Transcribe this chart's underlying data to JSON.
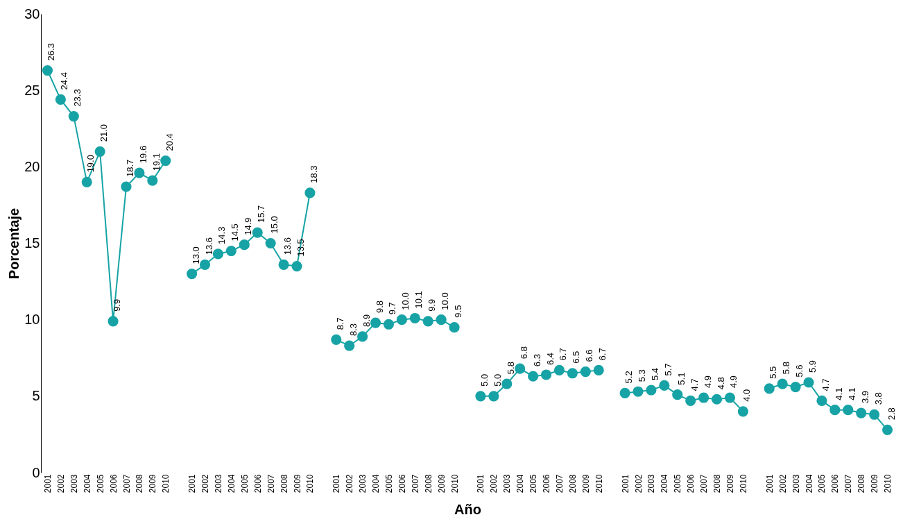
{
  "chart_data": {
    "type": "line",
    "xlabel": "Año",
    "ylabel": "Porcentaje",
    "categories": [
      "2001",
      "2002",
      "2003",
      "2004",
      "2005",
      "2006",
      "2007",
      "2008",
      "2009",
      "2010",
      null,
      "2001",
      "2002",
      "2003",
      "2004",
      "2005",
      "2006",
      "2007",
      "2008",
      "2009",
      "2010",
      null,
      "2001",
      "2002",
      "2003",
      "2004",
      "2005",
      "2006",
      "2007",
      "2008",
      "2009",
      "2010",
      null,
      "2001",
      "2002",
      "2003",
      "2004",
      "2005",
      "2006",
      "2007",
      "2008",
      "2009",
      "2010",
      null,
      "2001",
      "2002",
      "2003",
      "2004",
      "2005",
      "2006",
      "2007",
      "2008",
      "2009",
      "2010",
      null,
      "2001",
      "2002",
      "2003",
      "2004",
      "2005",
      "2006",
      "2007",
      "2008",
      "2009",
      "2010"
    ],
    "series": [
      {
        "color": "#17a3a5",
        "value_labels": [
          "26.3",
          "24.4",
          "23.3",
          "19.0",
          "21.0",
          "9.9",
          "18.7",
          "19.6",
          "19.1",
          "20.4",
          null,
          "13.0",
          "13.6",
          "14.3",
          "14.5",
          "14.9",
          "15.7",
          "15.0",
          "13.6",
          "13.5",
          "18.3",
          null,
          "8.7",
          "8.3",
          "8.9",
          "9.8",
          "9.7",
          "10.0",
          "10.1",
          "9.9",
          "10.0",
          "9.5",
          null,
          "5.0",
          "5.0",
          "5.8",
          "6.8",
          "6.3",
          "6.4",
          "6.7",
          "6.5",
          "6.6",
          "6.7",
          null,
          "5.2",
          "5.3",
          "5.4",
          "5.7",
          "5.1",
          "4.7",
          "4.9",
          "4.8",
          "4.9",
          "4.0",
          null,
          "5.5",
          "5.8",
          "5.6",
          "5.9",
          "4.7",
          "4.1",
          "4.1",
          "3.9",
          "3.8",
          "2.8"
        ],
        "values": [
          26.3,
          24.4,
          23.3,
          19.0,
          21.0,
          9.9,
          18.7,
          19.6,
          19.1,
          20.4,
          null,
          13.0,
          13.6,
          14.3,
          14.5,
          14.9,
          15.7,
          15.0,
          13.6,
          13.5,
          18.3,
          null,
          8.7,
          8.3,
          8.9,
          9.8,
          9.7,
          10.0,
          10.1,
          9.9,
          10.0,
          9.5,
          null,
          5.0,
          5.0,
          5.8,
          6.8,
          6.3,
          6.4,
          6.7,
          6.5,
          6.6,
          6.7,
          null,
          5.2,
          5.3,
          5.4,
          5.7,
          5.1,
          4.7,
          4.9,
          4.8,
          4.9,
          4.0,
          null,
          5.5,
          5.8,
          5.6,
          5.9,
          4.7,
          4.1,
          4.1,
          3.9,
          3.8,
          2.8
        ]
      }
    ],
    "ylim": [
      0,
      30
    ],
    "yticks": [
      0,
      5,
      10,
      15,
      20,
      25,
      30
    ],
    "grid": false,
    "marker": "circle",
    "line_style": "solid"
  }
}
